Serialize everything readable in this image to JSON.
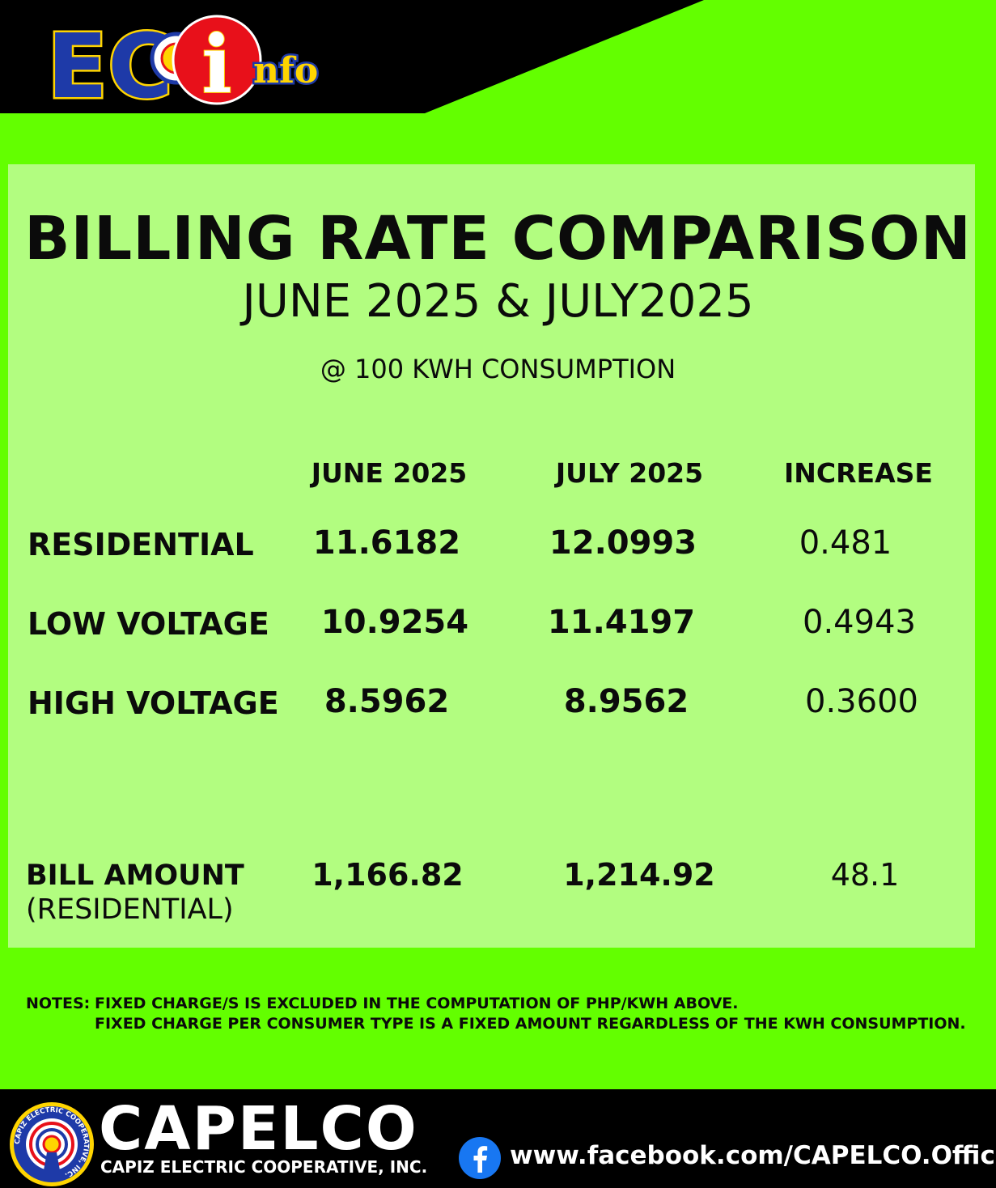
{
  "colors": {
    "background": "#63ff00",
    "panel": "#b2fd80",
    "band": "#000000",
    "logo_blue": "#1e3aa8",
    "logo_yellow": "#ffd400",
    "logo_red": "#e8101a",
    "facebook_blue": "#1877f2"
  },
  "logo": {
    "text_ec": "EC",
    "text_i": "i",
    "text_nfo": "nfo"
  },
  "title": "BILLING RATE COMPARISON",
  "subtitle": "JUNE 2025 & JULY2025",
  "consumption_note": "@ 100 KWH CONSUMPTION",
  "table": {
    "columns": [
      "JUNE 2025",
      "JULY 2025",
      "INCREASE"
    ],
    "rows": [
      {
        "label": "RESIDENTIAL",
        "june": "11.6182",
        "july": "12.0993",
        "increase": "0.481"
      },
      {
        "label": "LOW VOLTAGE",
        "june": "10.9254",
        "july": "11.4197",
        "increase": "0.4943"
      },
      {
        "label": "HIGH VOLTAGE",
        "june": "8.5962",
        "july": "8.9562",
        "increase": "0.3600"
      }
    ],
    "bill": {
      "label": "BILL AMOUNT",
      "label_sub": "(RESIDENTIAL)",
      "june": "1,166.82",
      "july": "1,214.92",
      "increase": "48.1"
    }
  },
  "notes": {
    "prefix": "NOTES:",
    "line1": "FIXED CHARGE/S IS EXCLUDED IN THE COMPUTATION OF PHP/KWH ABOVE.",
    "line2": "FIXED CHARGE PER CONSUMER TYPE IS A FIXED AMOUNT  REGARDLESS OF THE KWH CONSUMPTION."
  },
  "footer": {
    "brand": "CAPELCO",
    "brand_sub": "CAPIZ ELECTRIC COOPERATIVE, INC.",
    "seal_text": "CAPIZ ELECTRIC COOPERATIVE, INC.",
    "facebook_url": "www.facebook.com/CAPELCO.Official",
    "facebook_icon": "facebook-icon"
  }
}
